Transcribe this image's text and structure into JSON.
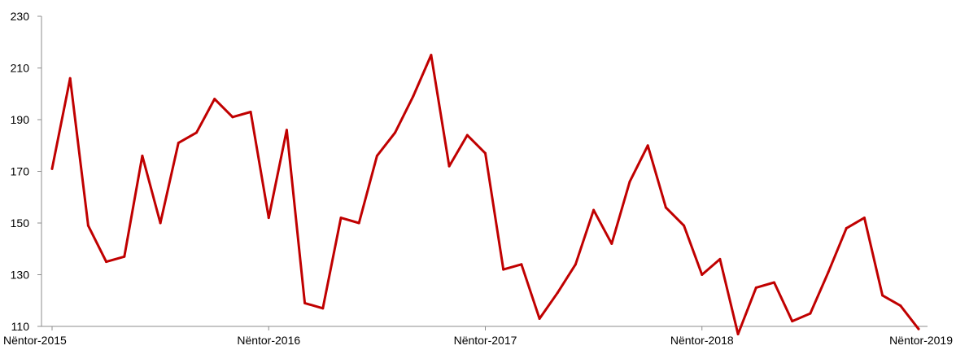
{
  "chart_data": {
    "type": "line",
    "title": "",
    "xlabel": "",
    "ylabel": "",
    "ylim": [
      110,
      230
    ],
    "yticks": [
      110,
      130,
      150,
      170,
      190,
      210,
      230
    ],
    "x_tick_labels": [
      {
        "index": 0,
        "label": "Nëntor-2015"
      },
      {
        "index": 12,
        "label": "Nëntor-2016"
      },
      {
        "index": 24,
        "label": "Nëntor-2017"
      },
      {
        "index": 36,
        "label": "Nëntor-2018"
      },
      {
        "index": 48,
        "label": "Nëntor-2019"
      }
    ],
    "grid": false,
    "legend": "none",
    "series": [
      {
        "color": "#c00000",
        "values": [
          171,
          206,
          149,
          135,
          137,
          176,
          150,
          181,
          185,
          198,
          191,
          193,
          152,
          186,
          119,
          117,
          152,
          150,
          176,
          185,
          199,
          215,
          172,
          184,
          177,
          132,
          134,
          113,
          123,
          134,
          155,
          142,
          166,
          180,
          156,
          149,
          130,
          136,
          107,
          125,
          127,
          112,
          115,
          131,
          148,
          152,
          122,
          118,
          109
        ]
      }
    ]
  }
}
